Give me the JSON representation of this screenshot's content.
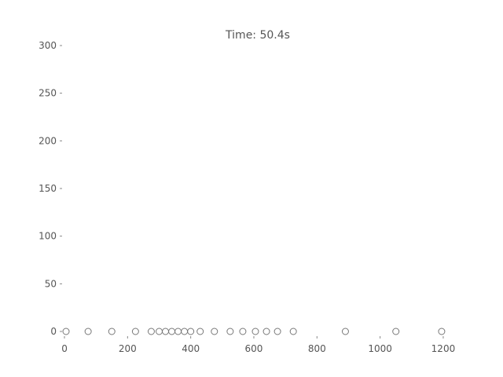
{
  "chart_data": {
    "type": "scatter",
    "title": "Time: 50.4s",
    "xlabel": "",
    "ylabel": "",
    "xlim": [
      -5,
      1230
    ],
    "ylim": [
      0,
      300
    ],
    "grid": false,
    "x_ticks": [
      0,
      200,
      400,
      600,
      800,
      1000,
      1200
    ],
    "y_ticks": [
      0,
      50,
      100,
      150,
      200,
      250,
      300
    ],
    "series": [
      {
        "marker": "circle-open",
        "color": "#777777",
        "x": [
          5,
          75,
          150,
          225,
          275,
          300,
          320,
          340,
          360,
          380,
          400,
          430,
          475,
          525,
          565,
          605,
          640,
          675,
          725,
          890,
          1050,
          1195
        ],
        "y": [
          0,
          0,
          0,
          0,
          0,
          0,
          0,
          0,
          0,
          0,
          0,
          0,
          0,
          0,
          0,
          0,
          0,
          0,
          0,
          0,
          0,
          0
        ]
      }
    ]
  }
}
